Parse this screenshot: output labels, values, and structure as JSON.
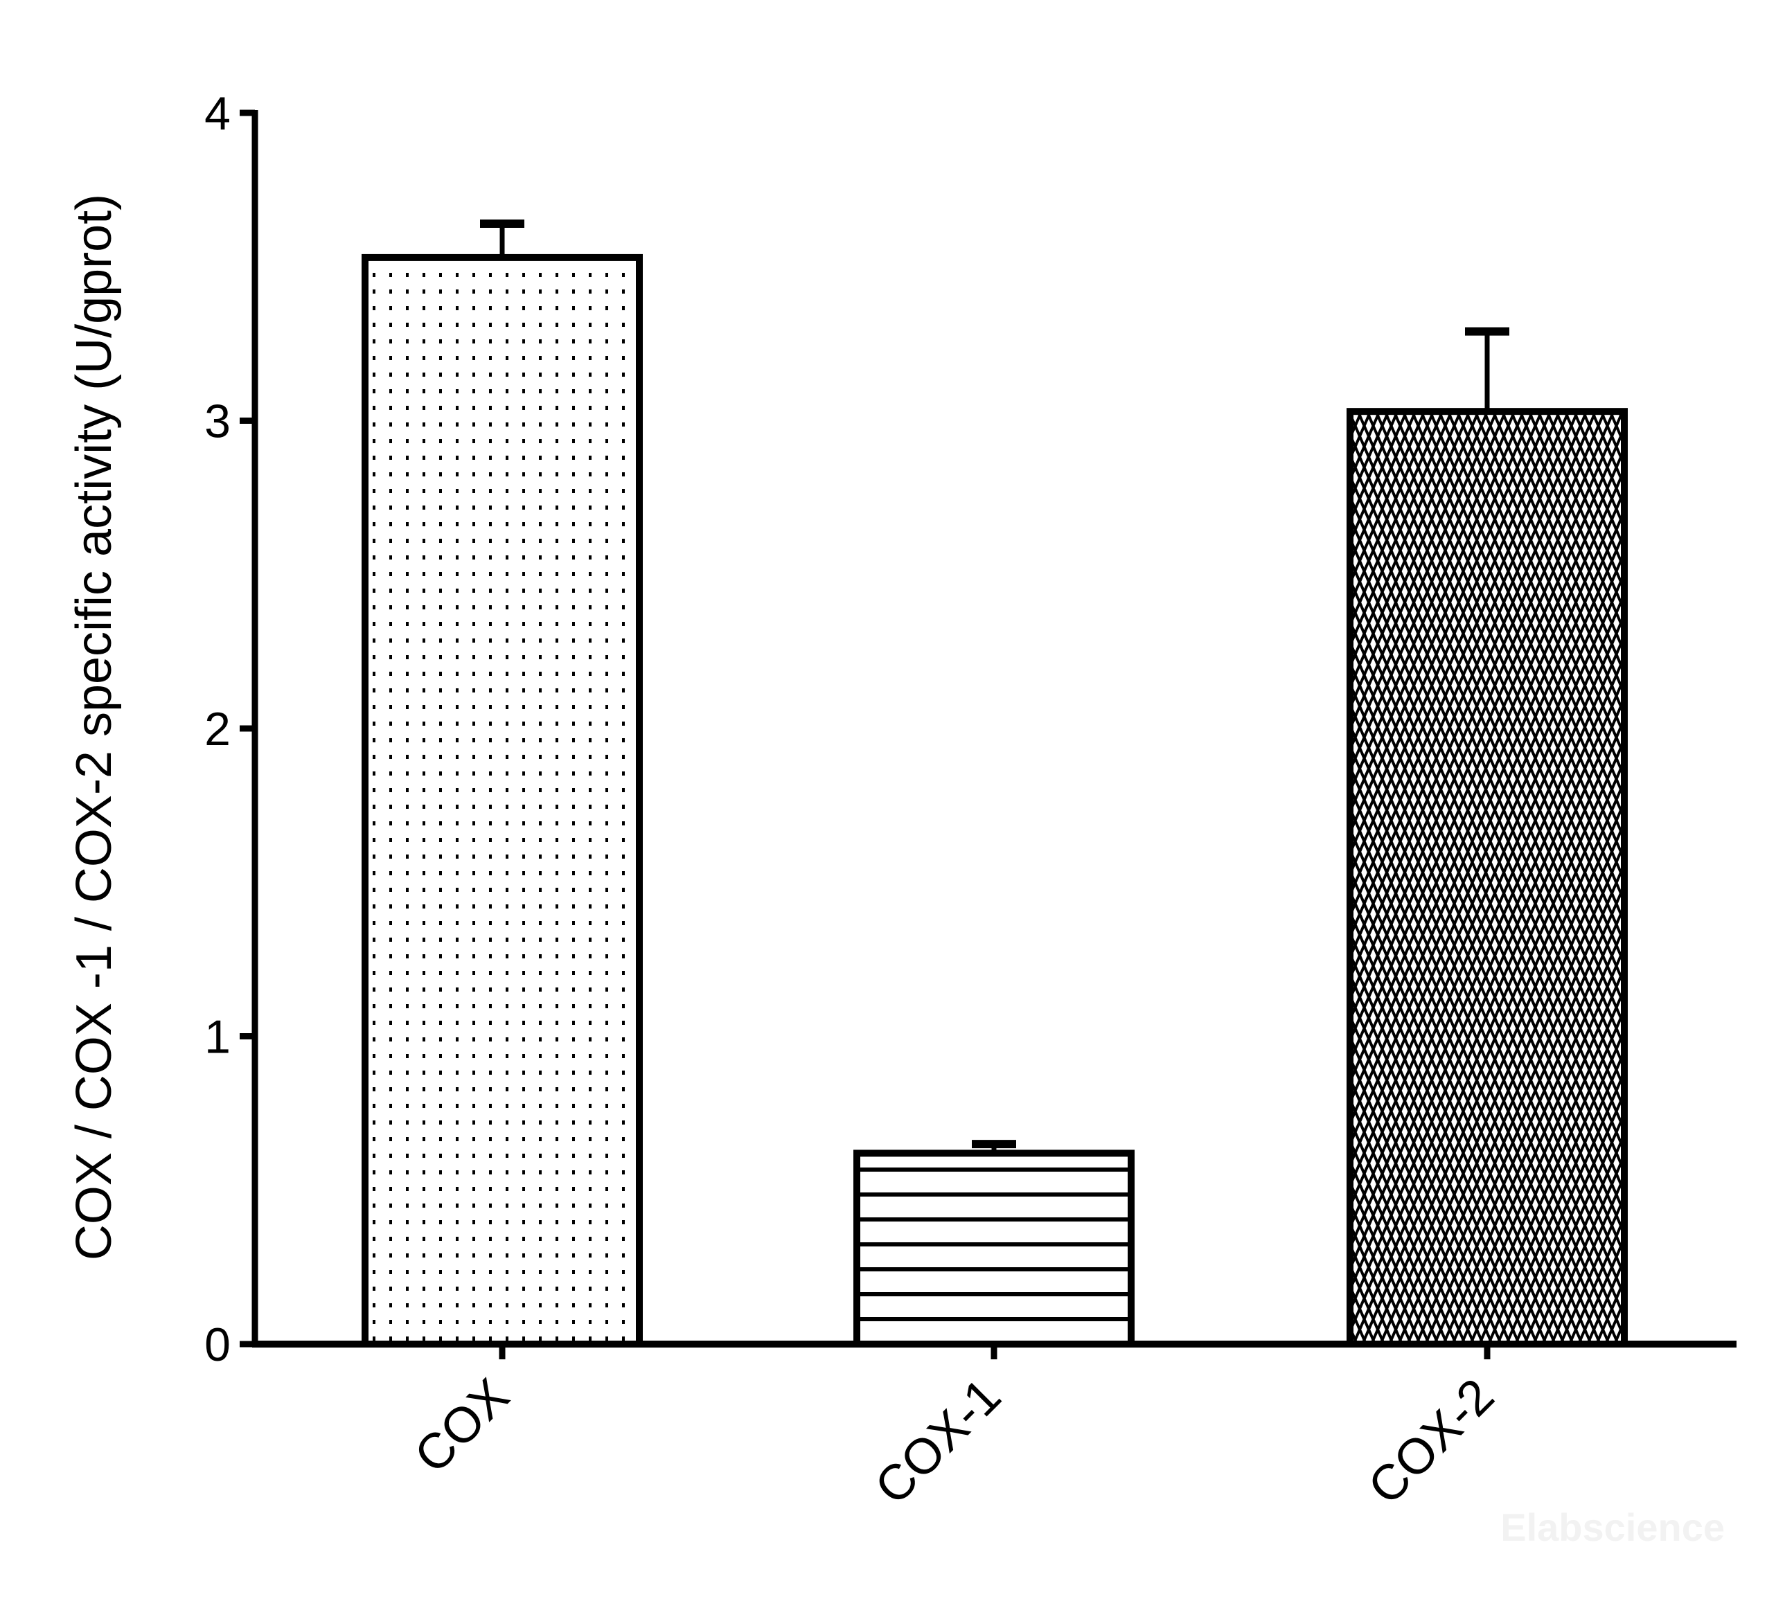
{
  "chart_data": {
    "type": "bar",
    "title": "",
    "xlabel": "",
    "ylabel": "COX / COX -1 / COX-2 specific activity (U/gprot)",
    "ylim": [
      0,
      4
    ],
    "yticks": [
      "0",
      "1",
      "2",
      "3",
      "4"
    ],
    "categories": [
      "COX",
      "COX-1",
      "COX-2"
    ],
    "values": [
      3.53,
      0.62,
      3.03
    ],
    "error_upper": [
      0.11,
      0.03,
      0.26
    ],
    "fill_patterns": [
      "dots",
      "horizontal-lines",
      "crosshatch"
    ],
    "grid": false,
    "legend": "none",
    "colors": {
      "stroke": "#000000",
      "background": "#ffffff"
    }
  },
  "watermark": "Elabscience"
}
